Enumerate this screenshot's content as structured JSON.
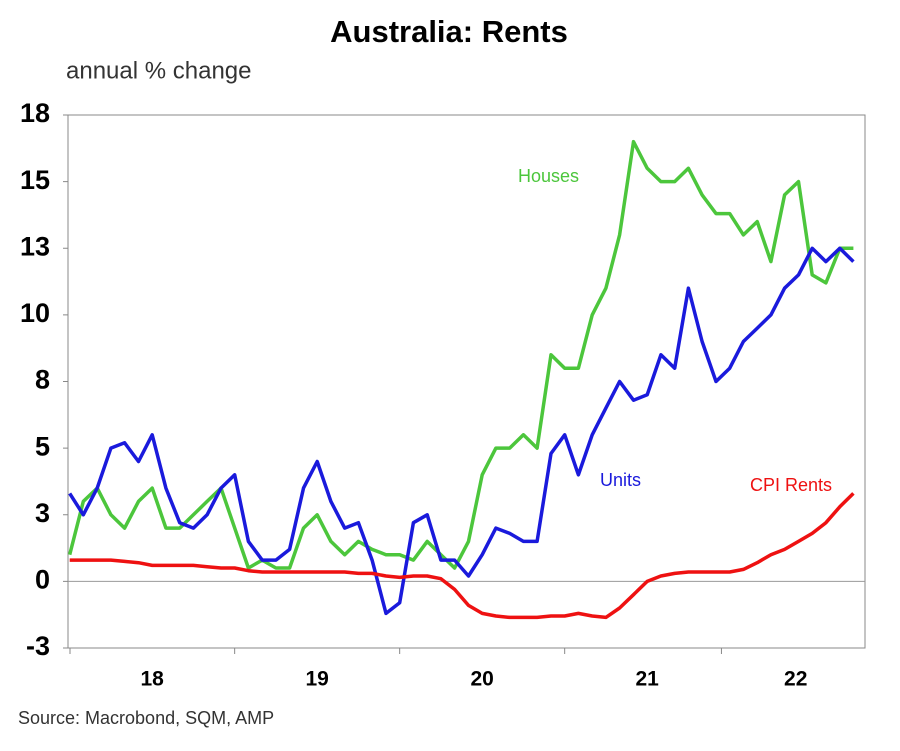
{
  "chart_data": {
    "type": "line",
    "title": "Australia: Rents",
    "y_axis_label": "annual % change",
    "source": "Source: Macrobond, SQM, AMP",
    "x": [
      2018,
      2018.083,
      2018.167,
      2018.25,
      2018.333,
      2018.417,
      2018.5,
      2018.583,
      2018.667,
      2018.75,
      2018.833,
      2018.917,
      2019,
      2019.083,
      2019.167,
      2019.25,
      2019.333,
      2019.417,
      2019.5,
      2019.583,
      2019.667,
      2019.75,
      2019.833,
      2019.917,
      2020,
      2020.083,
      2020.167,
      2020.25,
      2020.333,
      2020.417,
      2020.5,
      2020.583,
      2020.667,
      2020.75,
      2020.833,
      2020.917,
      2021,
      2021.083,
      2021.167,
      2021.25,
      2021.333,
      2021.417,
      2021.5,
      2021.583,
      2021.667,
      2021.75,
      2021.833,
      2021.917,
      2022,
      2022.083,
      2022.167,
      2022.25,
      2022.333,
      2022.417,
      2022.5,
      2022.583,
      2022.667,
      2022.75
    ],
    "series": [
      {
        "name": "Houses",
        "color": "#4cc63c",
        "values": [
          1.0,
          3.0,
          3.5,
          2.5,
          2.0,
          3.0,
          3.5,
          2.0,
          2.0,
          2.5,
          3.0,
          3.5,
          2.0,
          0.5,
          0.8,
          0.5,
          0.5,
          2.0,
          2.5,
          1.5,
          1.0,
          1.5,
          1.2,
          1.0,
          1.0,
          0.8,
          1.5,
          1.0,
          0.5,
          1.5,
          4.0,
          5.0,
          5.0,
          5.5,
          5.0,
          8.5,
          8.0,
          8.0,
          10.0,
          11.0,
          13.0,
          16.5,
          15.5,
          15.0,
          15.0,
          15.5,
          14.5,
          13.8,
          13.8,
          13.0,
          13.5,
          12.0,
          14.5,
          15.0,
          11.5,
          11.2,
          12.5,
          12.5
        ]
      },
      {
        "name": "Units",
        "color": "#1a1adc",
        "values": [
          3.3,
          2.5,
          3.5,
          5.0,
          5.2,
          4.5,
          5.5,
          3.5,
          2.2,
          2.0,
          2.5,
          3.5,
          4.0,
          1.5,
          0.8,
          0.8,
          1.2,
          3.5,
          4.5,
          3.0,
          2.0,
          2.2,
          0.8,
          -1.2,
          -0.8,
          2.2,
          2.5,
          0.8,
          0.8,
          0.2,
          1.0,
          2.0,
          1.8,
          1.5,
          1.5,
          4.8,
          5.5,
          4.0,
          5.5,
          6.5,
          7.5,
          6.8,
          7.0,
          8.5,
          8.0,
          11.0,
          9.0,
          7.5,
          8.0,
          9.0,
          9.5,
          10.0,
          11.0,
          11.5,
          12.5,
          12.0,
          12.5,
          12.0
        ]
      },
      {
        "name": "CPI Rents",
        "color": "#ee1111",
        "values": [
          0.8,
          0.8,
          0.8,
          0.8,
          0.75,
          0.7,
          0.6,
          0.6,
          0.6,
          0.6,
          0.55,
          0.5,
          0.5,
          0.4,
          0.35,
          0.35,
          0.35,
          0.35,
          0.35,
          0.35,
          0.35,
          0.3,
          0.3,
          0.2,
          0.15,
          0.2,
          0.2,
          0.1,
          -0.3,
          -0.9,
          -1.2,
          -1.3,
          -1.35,
          -1.35,
          -1.35,
          -1.3,
          -1.3,
          -1.2,
          -1.3,
          -1.35,
          -1.0,
          -0.5,
          0.0,
          0.2,
          0.3,
          0.35,
          0.35,
          0.35,
          0.35,
          0.45,
          0.7,
          1.0,
          1.2,
          1.5,
          1.8,
          2.2,
          2.8,
          3.3
        ]
      }
    ],
    "xlim": [
      2017.99,
      2022.82
    ],
    "xticks": [
      {
        "value": 2018.5,
        "label": "18"
      },
      {
        "value": 2019.5,
        "label": "19"
      },
      {
        "value": 2020.5,
        "label": "20"
      },
      {
        "value": 2021.5,
        "label": "21"
      },
      {
        "value": 2022.4,
        "label": "22"
      }
    ],
    "ylim": [
      -2.5,
      17.5
    ],
    "yticks": [
      {
        "value": -2.5,
        "label": "-3"
      },
      0,
      {
        "value": 2.5,
        "label": "3"
      },
      5,
      {
        "value": 7.5,
        "label": "8"
      },
      10,
      {
        "value": 12.5,
        "label": "13"
      },
      15,
      {
        "value": 17.5,
        "label": "18"
      }
    ],
    "zero_line": true
  }
}
